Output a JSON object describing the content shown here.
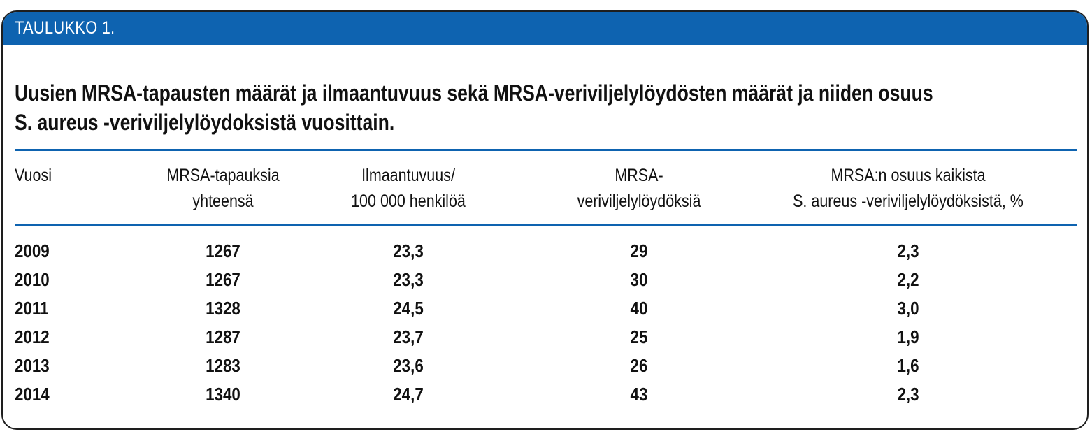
{
  "header": {
    "label": "TAULUKKO 1."
  },
  "title": {
    "line1": "Uusien MRSA-tapausten määrät ja ilmaantuvuus sekä MRSA-veriviljelylöydösten määrät ja  niiden osuus",
    "line2": "S. aureus -veriviljelylöydoksistä vuosittain."
  },
  "table": {
    "headers": [
      {
        "line1": "Vuosi",
        "line2": ""
      },
      {
        "line1": "MRSA-tapauksia",
        "line2": "yhteensä"
      },
      {
        "line1": "Ilmaantuvuus/",
        "line2": "100 000 henkilöä"
      },
      {
        "line1": "MRSA-",
        "line2": "veriviljelylöydöksiä"
      },
      {
        "line1": "MRSA:n osuus kaikista",
        "line2": "S. aureus -veriviljelylöydöksistä, %"
      }
    ],
    "rows": [
      [
        "2009",
        "1267",
        "23,3",
        "29",
        "2,3"
      ],
      [
        "2010",
        "1267",
        "23,3",
        "30",
        "2,2"
      ],
      [
        "2011",
        "1328",
        "24,5",
        "40",
        "3,0"
      ],
      [
        "2012",
        "1287",
        "23,7",
        "25",
        "1,9"
      ],
      [
        "2013",
        "1283",
        "23,6",
        "26",
        "1,6"
      ],
      [
        "2014",
        "1340",
        "24,7",
        "43",
        "2,3"
      ]
    ]
  },
  "colors": {
    "accent": "#0e63b0",
    "border": "#1e1e1e",
    "header_text": "#ffffff"
  }
}
